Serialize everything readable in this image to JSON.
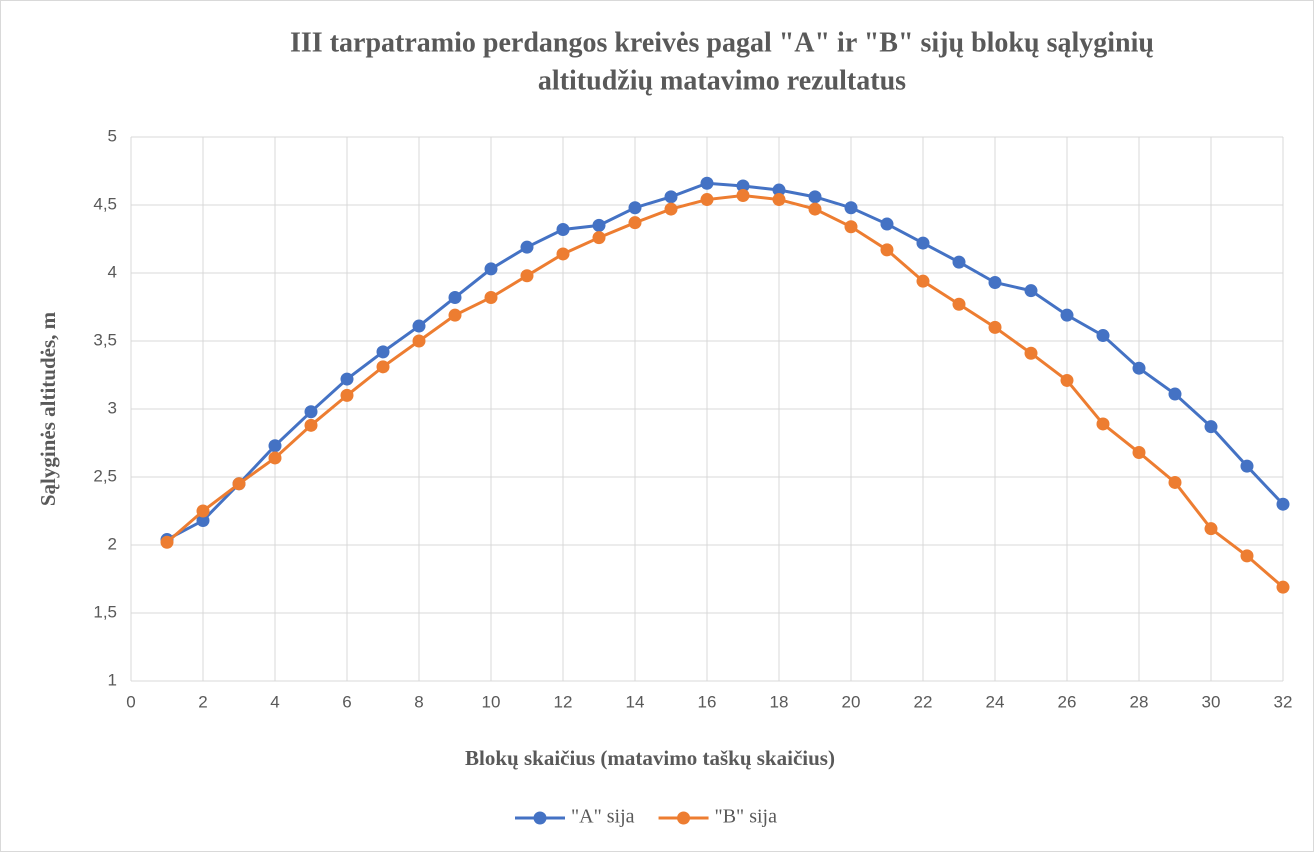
{
  "chart_data": {
    "type": "line",
    "title": [
      "III tarpatramio perdangos kreivės pagal \"A\" ir  \"B\" sijų blokų sąlyginių",
      "altitudžių matavimo rezultatus"
    ],
    "x_label": "Blokų skaičius (matavimo taškų skaičius)",
    "y_label": "Sąlyginės altitudės, m",
    "x": [
      1,
      2,
      3,
      4,
      5,
      6,
      7,
      8,
      9,
      10,
      11,
      12,
      13,
      14,
      15,
      16,
      17,
      18,
      19,
      20,
      21,
      22,
      23,
      24,
      25,
      26,
      27,
      28,
      29,
      30,
      31,
      32
    ],
    "series": [
      {
        "name": "\"A\" sija",
        "color": "#4472c4",
        "values": [
          2.04,
          2.18,
          2.45,
          2.73,
          2.98,
          3.22,
          3.42,
          3.61,
          3.82,
          4.03,
          4.19,
          4.32,
          4.35,
          4.48,
          4.56,
          4.66,
          4.64,
          4.61,
          4.56,
          4.48,
          4.36,
          4.22,
          4.08,
          3.93,
          3.87,
          3.69,
          3.54,
          3.3,
          3.11,
          2.87,
          2.58,
          2.3
        ]
      },
      {
        "name": "\"B\" sija",
        "color": "#ed7d31",
        "values": [
          2.02,
          2.25,
          2.45,
          2.64,
          2.88,
          3.1,
          3.31,
          3.5,
          3.69,
          3.82,
          3.98,
          4.14,
          4.26,
          4.37,
          4.47,
          4.54,
          4.57,
          4.54,
          4.47,
          4.34,
          4.17,
          3.94,
          3.77,
          3.6,
          3.41,
          3.21,
          2.89,
          2.68,
          2.46,
          2.12,
          1.92,
          1.69
        ]
      }
    ],
    "xlim": [
      0,
      32
    ],
    "xticks": [
      0,
      2,
      4,
      6,
      8,
      10,
      12,
      14,
      16,
      18,
      20,
      22,
      24,
      26,
      28,
      30,
      32
    ],
    "ylim": [
      1,
      5
    ],
    "yticks": [
      1,
      {
        "value": 1.5,
        "label": "1,5"
      },
      2,
      {
        "value": 2.5,
        "label": "2,5"
      },
      3,
      {
        "value": 3.5,
        "label": "3,5"
      },
      4,
      {
        "value": 4.5,
        "label": "4,5"
      },
      5
    ],
    "grid": true,
    "legend": "bottom"
  }
}
